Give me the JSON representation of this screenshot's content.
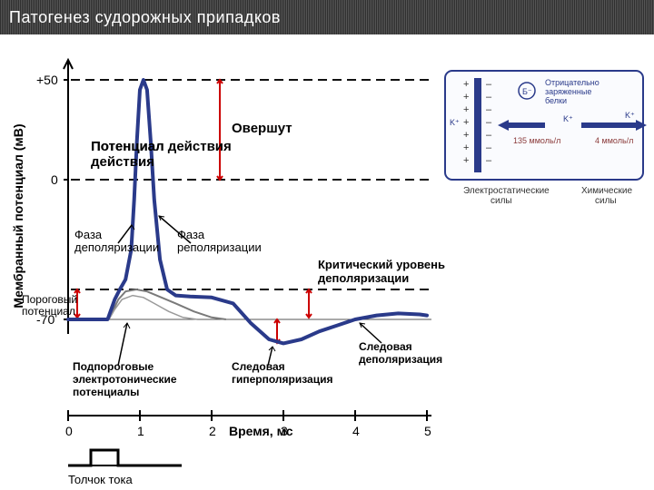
{
  "slide": {
    "title": "Патогенез судорожных припадков"
  },
  "chart": {
    "type": "line",
    "line_color": "#2a3a8a",
    "secondary_line_color": "#7a7a7a",
    "grid_color": "#555555",
    "dash_color": "#111111",
    "red_accent": "#cc0000",
    "background": "#ffffff",
    "y_axis": {
      "label": "Мембранный потенциал (мB)",
      "ticks": [
        "+50",
        "0",
        "-70"
      ],
      "ylim_mv": [
        -90,
        60
      ]
    },
    "x_axis": {
      "label": "Время, мс",
      "ticks": [
        "0",
        "1",
        "2",
        "3",
        "4",
        "5"
      ],
      "xlim": [
        0,
        5
      ]
    },
    "stimulus": {
      "label": "Толчок тока"
    },
    "annotations": {
      "action_potential": "Потенциал действия",
      "overshoot": "Овершут",
      "depolarization_phase": "Фаза деполяризации",
      "repolarization_phase": "Фаза реполяризации",
      "critical_level_line1": "Критический уровень",
      "critical_level_line2": "деполяризации",
      "threshold_line1": "Пороговый",
      "threshold_line2": "потенциал",
      "subthreshold_line1": "Подпороговые",
      "subthreshold_line2": "электротонические",
      "subthreshold_line3": "потенциалы",
      "after_hyper_line1": "Следовая",
      "after_hyper_line2": "гиперполяризация",
      "after_depol_line1": "Следовая",
      "after_depol_line2": "деполяризация"
    },
    "curve_points": [
      [
        0,
        -70
      ],
      [
        0.55,
        -70
      ],
      [
        0.65,
        -60
      ],
      [
        0.72,
        -55
      ],
      [
        0.8,
        -50
      ],
      [
        0.88,
        -35
      ],
      [
        0.92,
        -10
      ],
      [
        0.96,
        20
      ],
      [
        1.0,
        45
      ],
      [
        1.05,
        50
      ],
      [
        1.1,
        45
      ],
      [
        1.15,
        20
      ],
      [
        1.2,
        -10
      ],
      [
        1.28,
        -40
      ],
      [
        1.38,
        -55
      ],
      [
        1.5,
        -58
      ],
      [
        1.7,
        -58.5
      ],
      [
        2.0,
        -59
      ],
      [
        2.3,
        -62
      ],
      [
        2.55,
        -72
      ],
      [
        2.8,
        -80
      ],
      [
        3.0,
        -82
      ],
      [
        3.25,
        -80
      ],
      [
        3.5,
        -76
      ],
      [
        3.75,
        -73
      ],
      [
        4.0,
        -70
      ],
      [
        4.3,
        -68
      ],
      [
        4.6,
        -67
      ],
      [
        4.9,
        -67.5
      ],
      [
        5.0,
        -68
      ]
    ],
    "subthreshold_curves": [
      [
        [
          0.55,
          -70
        ],
        [
          0.62,
          -66
        ],
        [
          0.7,
          -60
        ],
        [
          0.8,
          -56
        ],
        [
          0.95,
          -55
        ],
        [
          1.1,
          -56
        ],
        [
          1.3,
          -59
        ],
        [
          1.5,
          -62
        ],
        [
          1.75,
          -66
        ],
        [
          2.0,
          -69
        ],
        [
          2.2,
          -70
        ]
      ],
      [
        [
          0.57,
          -70
        ],
        [
          0.65,
          -65
        ],
        [
          0.75,
          -60
        ],
        [
          0.9,
          -58
        ],
        [
          1.05,
          -59
        ],
        [
          1.2,
          -62
        ],
        [
          1.4,
          -66
        ],
        [
          1.6,
          -69
        ],
        [
          1.8,
          -70
        ]
      ]
    ]
  },
  "inset": {
    "border_color": "#2a3a8a",
    "arrow_color": "#2a3a8a",
    "membrane_color": "#2a3a8a",
    "proteins": "Отрицательно заряженные белки",
    "charge_symbol": "Б⁻",
    "k_plus": "K⁺",
    "conc_in": "135 ммоль/л",
    "conc_out": "4 ммоль/л",
    "electrostatic": "Электростатические силы",
    "chemical": "Химические силы",
    "plus": "+",
    "minus": "–"
  }
}
